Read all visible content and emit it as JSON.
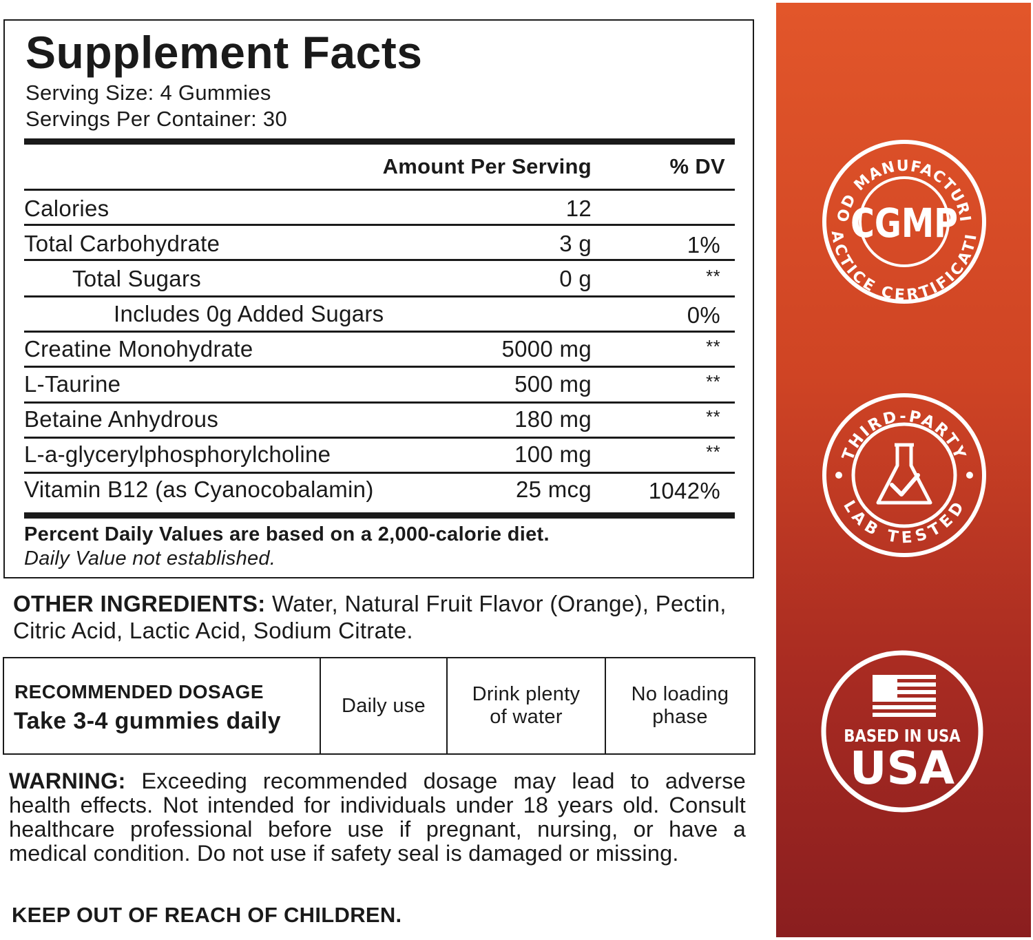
{
  "facts": {
    "title": "Supplement Facts",
    "serving_size": "Serving Size: 4 Gummies",
    "servings_per_container": "Servings Per Container: 30",
    "header_amount": "Amount Per Serving",
    "header_dv": "% DV",
    "rows": [
      {
        "name": "Calories",
        "amount": "12",
        "dv": ""
      },
      {
        "name": "Total Carbohydrate",
        "amount": "3 g",
        "dv": "1%"
      },
      {
        "name": "Total Sugars",
        "amount": "0 g",
        "dv": "**"
      },
      {
        "name": "Includes 0g Added Sugars",
        "amount": "",
        "dv": "0%"
      },
      {
        "name": "Creatine Monohydrate",
        "amount": "5000 mg",
        "dv": "**"
      },
      {
        "name": "L-Taurine",
        "amount": "500 mg",
        "dv": "**"
      },
      {
        "name": "Betaine Anhydrous",
        "amount": "180 mg",
        "dv": "**"
      },
      {
        "name": "L-a-glycerylphosphorylcholine",
        "amount": "100 mg",
        "dv": "**"
      },
      {
        "name": "Vitamin B12 (as Cyanocobalamin)",
        "amount": "25 mcg",
        "dv": "1042%"
      }
    ],
    "footnote_1": "Percent Daily Values are based on a 2,000-calorie diet.",
    "footnote_2": "Daily Value not established."
  },
  "other_ingredients": {
    "label": "OTHER INGREDIENTS:",
    "text": " Water, Natural Fruit Flavor (Orange), Pectin, Citric Acid, Lactic Acid, Sodium Citrate."
  },
  "dosage": {
    "heading": "RECOMMENDED DOSAGE",
    "value": "Take 3-4 gummies daily",
    "cell_2": "Daily use",
    "cell_3": "Drink plenty of water",
    "cell_4": "No loading phase"
  },
  "warning": {
    "label": "WARNING:",
    "text": " Exceeding recommended dosage may lead to adverse health effects. Not intended for individuals under 18 years old. Consult healthcare professional before use if pregnant, nursing, or have a medical condition. Do not use if safety seal is damaged or missing."
  },
  "keep_out": "KEEP OUT OF REACH OF CHILDREN.",
  "badges": {
    "cgmp": {
      "arc_top": "GOOD MANUFACTURING",
      "center": "CGMP",
      "arc_bottom": "PRACTICE CERTIFICATION",
      "icon": "cgmp-seal"
    },
    "lab": {
      "arc_top": "THIRD-PARTY",
      "arc_bottom": "LAB TESTED",
      "icon": "flask-check-icon"
    },
    "usa": {
      "line_1": "BASED IN USA",
      "line_2": "USA",
      "icon": "us-flag-icon"
    }
  },
  "colors": {
    "band_top": "#e2562a",
    "band_bottom": "#8a1e1f",
    "badge_stroke": "#ffffff",
    "text": "#1a1a1a"
  }
}
